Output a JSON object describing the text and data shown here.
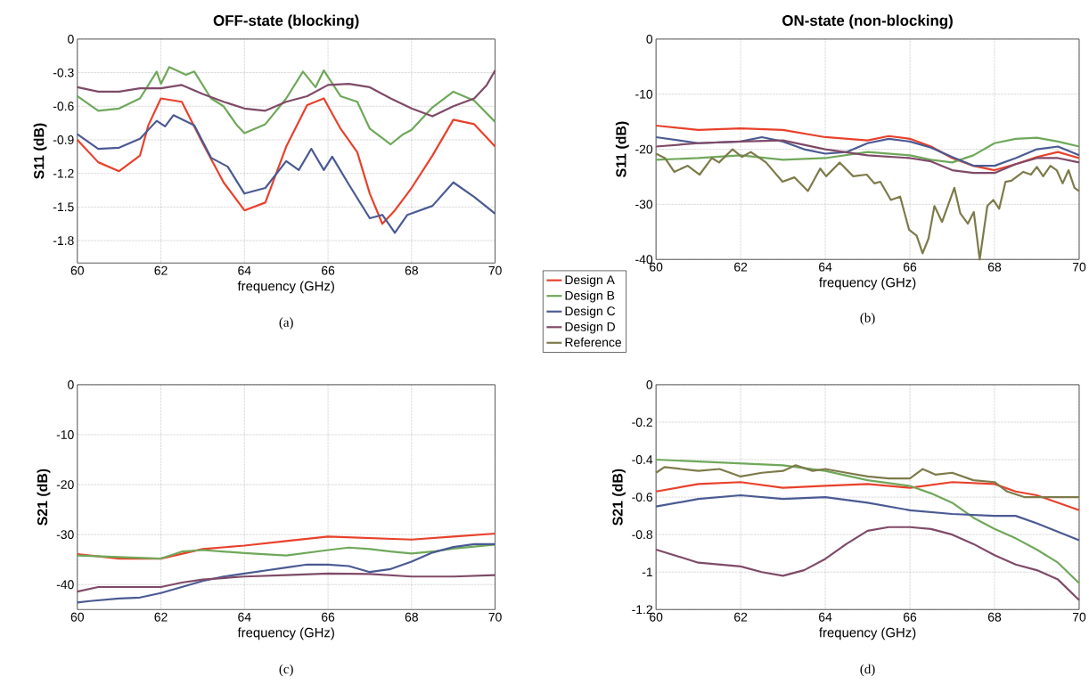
{
  "chart_data": [
    {
      "type": "line",
      "title": "OFF-state (blocking)",
      "xlabel": "frequency (GHz)",
      "ylabel": "S11 (dB)",
      "annotations": [
        "(a)"
      ],
      "xlim": [
        60,
        70
      ],
      "xticks": [
        60,
        62,
        64,
        66,
        68,
        70
      ],
      "ylim": [
        -2,
        0
      ],
      "yticks": [
        0,
        -0.3,
        -0.6,
        -0.9,
        -1.2,
        -1.5,
        -1.8
      ],
      "grid": true,
      "series": [
        {
          "color": "#e8412b",
          "x": [
            60,
            60.5,
            61,
            61.5,
            61.7,
            62,
            62.5,
            63,
            63.5,
            64,
            64.5,
            65,
            65.5,
            65.9,
            66.3,
            66.7,
            67,
            67.3,
            67.6,
            68,
            68.5,
            69,
            69.5,
            70
          ],
          "values": [
            -0.9,
            -1.1,
            -1.18,
            -1.04,
            -0.77,
            -0.53,
            -0.56,
            -0.93,
            -1.28,
            -1.53,
            -1.46,
            -0.96,
            -0.59,
            -0.53,
            -0.8,
            -1.01,
            -1.38,
            -1.65,
            -1.53,
            -1.33,
            -1.04,
            -0.72,
            -0.76,
            -0.96
          ]
        },
        {
          "color": "#6fa85a",
          "x": [
            60,
            60.5,
            61,
            61.5,
            61.9,
            62,
            62.2,
            62.6,
            62.8,
            63.2,
            63.5,
            63.8,
            64,
            64.5,
            65,
            65.4,
            65.7,
            65.9,
            66.3,
            66.7,
            67,
            67.5,
            67.8,
            68,
            68.5,
            69,
            69.5,
            70
          ],
          "values": [
            -0.51,
            -0.64,
            -0.62,
            -0.53,
            -0.29,
            -0.4,
            -0.25,
            -0.32,
            -0.29,
            -0.53,
            -0.6,
            -0.76,
            -0.84,
            -0.76,
            -0.53,
            -0.29,
            -0.43,
            -0.28,
            -0.51,
            -0.56,
            -0.8,
            -0.94,
            -0.85,
            -0.81,
            -0.61,
            -0.47,
            -0.55,
            -0.74
          ]
        },
        {
          "color": "#4a5a92",
          "x": [
            60,
            60.5,
            61,
            61.5,
            61.9,
            62.1,
            62.3,
            62.8,
            63.2,
            63.6,
            64,
            64.5,
            65,
            65.3,
            65.6,
            65.9,
            66.1,
            66.5,
            67,
            67.3,
            67.6,
            67.9,
            68.5,
            69,
            69.5,
            70
          ],
          "values": [
            -0.85,
            -0.98,
            -0.97,
            -0.89,
            -0.73,
            -0.78,
            -0.68,
            -0.77,
            -1.06,
            -1.14,
            -1.38,
            -1.33,
            -1.09,
            -1.17,
            -0.98,
            -1.17,
            -1.05,
            -1.3,
            -1.6,
            -1.57,
            -1.73,
            -1.57,
            -1.49,
            -1.28,
            -1.41,
            -1.56
          ]
        },
        {
          "color": "#7f4a68",
          "x": [
            60,
            60.5,
            61,
            61.5,
            62,
            62.5,
            63,
            63.5,
            64,
            64.5,
            65,
            65.5,
            66,
            66.5,
            67,
            67.5,
            68,
            68.5,
            69,
            69.5,
            69.8,
            70
          ],
          "values": [
            -0.43,
            -0.47,
            -0.47,
            -0.44,
            -0.44,
            -0.41,
            -0.49,
            -0.56,
            -0.62,
            -0.64,
            -0.56,
            -0.51,
            -0.41,
            -0.4,
            -0.43,
            -0.53,
            -0.62,
            -0.69,
            -0.6,
            -0.53,
            -0.41,
            -0.28
          ]
        }
      ]
    },
    {
      "type": "line",
      "title": "ON-state (non-blocking)",
      "xlabel": "frequency (GHz)",
      "ylabel": "S11 (dB)",
      "annotations": [
        "(b)"
      ],
      "xlim": [
        60,
        70
      ],
      "xticks": [
        60,
        62,
        64,
        66,
        68,
        70
      ],
      "ylim": [
        -40,
        0
      ],
      "yticks": [
        0,
        -10,
        -20,
        -30,
        -40
      ],
      "grid": true,
      "legend": "left",
      "series": [
        {
          "name": "Design A",
          "color": "#e8412b",
          "x": [
            60,
            61,
            62,
            63,
            64,
            65,
            65.5,
            66,
            66.5,
            67,
            67.5,
            68,
            68.5,
            69,
            69.5,
            70
          ],
          "values": [
            -15.7,
            -16.5,
            -16.2,
            -16.5,
            -17.8,
            -18.4,
            -17.6,
            -18.1,
            -19.5,
            -21.6,
            -23.0,
            -23.8,
            -22.7,
            -21.4,
            -20.5,
            -21.6
          ]
        },
        {
          "name": "Design B",
          "color": "#6fa85a",
          "x": [
            60,
            61,
            62,
            63,
            64,
            65,
            66,
            66.5,
            67,
            67.5,
            68,
            68.5,
            69,
            69.5,
            70
          ],
          "values": [
            -21.9,
            -21.6,
            -21.1,
            -21.9,
            -21.6,
            -20.5,
            -21.1,
            -21.9,
            -22.4,
            -21.1,
            -18.9,
            -18.1,
            -17.9,
            -18.6,
            -19.5
          ]
        },
        {
          "name": "Design C",
          "color": "#4a5a92",
          "x": [
            60,
            61,
            62,
            62.5,
            63,
            63.5,
            64,
            64.5,
            65,
            65.5,
            66,
            66.5,
            67,
            67.5,
            68,
            68.5,
            69,
            69.5,
            70
          ],
          "values": [
            -17.8,
            -18.9,
            -18.6,
            -17.8,
            -18.6,
            -20.0,
            -20.8,
            -20.5,
            -18.9,
            -18.1,
            -18.6,
            -19.7,
            -21.4,
            -23.0,
            -23.0,
            -21.6,
            -20.0,
            -19.5,
            -21.1
          ]
        },
        {
          "name": "Design D",
          "color": "#7f4a68",
          "x": [
            60,
            61,
            62,
            63,
            64,
            65,
            66,
            66.5,
            67,
            67.5,
            68,
            68.5,
            69,
            69.5,
            70
          ],
          "values": [
            -19.5,
            -18.9,
            -18.6,
            -18.4,
            -20.0,
            -21.1,
            -21.6,
            -22.2,
            -23.8,
            -24.3,
            -24.3,
            -22.7,
            -21.6,
            -21.6,
            -22.4
          ]
        },
        {
          "name": "Reference",
          "color": "#7d7a4a",
          "x": [
            60,
            60.21,
            60.43,
            60.75,
            61.03,
            61.32,
            61.49,
            61.81,
            62.03,
            62.24,
            62.6,
            62.99,
            63.27,
            63.59,
            63.88,
            64.02,
            64.34,
            64.66,
            64.98,
            65.16,
            65.3,
            65.55,
            65.77,
            65.98,
            66.16,
            66.3,
            66.44,
            66.58,
            66.76,
            67.05,
            67.19,
            67.37,
            67.51,
            67.65,
            67.83,
            67.97,
            68.11,
            68.26,
            68.4,
            68.68,
            68.86,
            69.0,
            69.15,
            69.32,
            69.47,
            69.61,
            69.75,
            69.89,
            70
          ],
          "values": [
            -20.8,
            -21.6,
            -24.1,
            -23.0,
            -24.6,
            -21.6,
            -22.4,
            -20.0,
            -21.4,
            -20.5,
            -22.4,
            -25.9,
            -25.1,
            -27.6,
            -23.5,
            -24.9,
            -22.4,
            -24.9,
            -24.6,
            -26.2,
            -25.9,
            -29.2,
            -28.6,
            -34.6,
            -35.7,
            -38.9,
            -36.2,
            -30.3,
            -33.2,
            -27.0,
            -31.6,
            -33.5,
            -31.4,
            -40.0,
            -30.3,
            -29.2,
            -30.8,
            -25.9,
            -25.7,
            -24.1,
            -24.6,
            -23.2,
            -24.9,
            -23.0,
            -23.8,
            -26.2,
            -23.8,
            -27.0,
            -27.6
          ]
        }
      ]
    },
    {
      "type": "line",
      "xlabel": "frequency (GHz)",
      "ylabel": "S21 (dB)",
      "annotations": [
        "(c)"
      ],
      "xlim": [
        60,
        70
      ],
      "xticks": [
        60,
        62,
        64,
        66,
        68,
        70
      ],
      "ylim": [
        -45,
        0
      ],
      "yticks": [
        0,
        -10,
        -20,
        -30,
        -40
      ],
      "grid": true,
      "series": [
        {
          "color": "#e8412b",
          "x": [
            60,
            61,
            62,
            63,
            64,
            65,
            66,
            67,
            68,
            69,
            70
          ],
          "values": [
            -33.9,
            -34.8,
            -34.8,
            -32.9,
            -32.2,
            -31.3,
            -30.4,
            -30.7,
            -31.0,
            -30.4,
            -29.8
          ]
        },
        {
          "color": "#6fa85a",
          "x": [
            60,
            61,
            62,
            62.5,
            63,
            64,
            65,
            66,
            66.5,
            67,
            67.5,
            68,
            68.5,
            69,
            70
          ],
          "values": [
            -34.2,
            -34.5,
            -34.8,
            -33.4,
            -33.1,
            -33.7,
            -34.2,
            -33.1,
            -32.6,
            -32.9,
            -33.4,
            -33.8,
            -33.4,
            -32.8,
            -32.0
          ]
        },
        {
          "color": "#4a5a92",
          "x": [
            60,
            60.3,
            61,
            61.5,
            62,
            62.5,
            63,
            63.5,
            64,
            64.5,
            65,
            65.5,
            66,
            66.5,
            67,
            67.5,
            68,
            68.5,
            69,
            69.5,
            70
          ],
          "values": [
            -43.6,
            -43.3,
            -42.8,
            -42.6,
            -41.7,
            -40.5,
            -39.3,
            -38.4,
            -37.8,
            -37.2,
            -36.6,
            -36.0,
            -36.0,
            -36.3,
            -37.5,
            -36.9,
            -35.4,
            -33.6,
            -32.5,
            -31.9,
            -31.9
          ]
        },
        {
          "color": "#7f4a68",
          "x": [
            60,
            60.5,
            61,
            62,
            62.5,
            63,
            64,
            65,
            66,
            67,
            68,
            69,
            70
          ],
          "values": [
            -41.4,
            -40.5,
            -40.5,
            -40.5,
            -39.6,
            -39.0,
            -38.4,
            -38.1,
            -37.8,
            -37.9,
            -38.4,
            -38.4,
            -38.1
          ]
        }
      ]
    },
    {
      "type": "line",
      "xlabel": "frequency (GHz)",
      "ylabel": "S21 (dB)",
      "annotations": [
        "(d)"
      ],
      "xlim": [
        60,
        70
      ],
      "xticks": [
        60,
        62,
        64,
        66,
        68,
        70
      ],
      "ylim": [
        -1.2,
        0
      ],
      "yticks": [
        0,
        -0.2,
        -0.4,
        -0.6,
        -0.8,
        -1,
        -1.2
      ],
      "grid": true,
      "series": [
        {
          "color": "#e8412b",
          "x": [
            60,
            61,
            62,
            63,
            64,
            65,
            66,
            67,
            68,
            68.5,
            69,
            70
          ],
          "values": [
            -0.57,
            -0.53,
            -0.52,
            -0.55,
            -0.54,
            -0.53,
            -0.55,
            -0.52,
            -0.53,
            -0.57,
            -0.59,
            -0.67
          ]
        },
        {
          "color": "#6fa85a",
          "x": [
            60,
            61,
            62,
            63,
            64,
            65,
            66,
            66.5,
            67,
            67.5,
            68,
            68.5,
            69,
            69.5,
            70
          ],
          "values": [
            -0.4,
            -0.41,
            -0.42,
            -0.43,
            -0.46,
            -0.51,
            -0.54,
            -0.58,
            -0.63,
            -0.71,
            -0.77,
            -0.82,
            -0.88,
            -0.95,
            -1.06
          ]
        },
        {
          "color": "#4a5a92",
          "x": [
            60,
            61,
            62,
            63,
            64,
            65,
            66,
            67,
            68,
            68.5,
            69,
            70
          ],
          "values": [
            -0.65,
            -0.61,
            -0.59,
            -0.61,
            -0.6,
            -0.63,
            -0.67,
            -0.69,
            -0.7,
            -0.7,
            -0.74,
            -0.83
          ]
        },
        {
          "color": "#7f4a68",
          "x": [
            60,
            61,
            62,
            62.5,
            63,
            63.5,
            64,
            64.5,
            65,
            65.5,
            66,
            66.5,
            67,
            67.5,
            68,
            68.5,
            69,
            69.5,
            70
          ],
          "values": [
            -0.88,
            -0.95,
            -0.97,
            -1.0,
            -1.02,
            -0.99,
            -0.93,
            -0.85,
            -0.78,
            -0.76,
            -0.76,
            -0.77,
            -0.8,
            -0.85,
            -0.91,
            -0.96,
            -0.99,
            -1.04,
            -1.15
          ]
        },
        {
          "color": "#7d7a4a",
          "x": [
            60,
            60.2,
            61,
            61.5,
            62,
            62.5,
            63,
            63.3,
            63.7,
            64,
            64.5,
            65,
            65.5,
            66,
            66.3,
            66.6,
            67,
            67.5,
            68,
            68.3,
            68.7,
            69,
            70
          ],
          "values": [
            -0.47,
            -0.44,
            -0.46,
            -0.45,
            -0.49,
            -0.47,
            -0.46,
            -0.43,
            -0.46,
            -0.45,
            -0.47,
            -0.49,
            -0.5,
            -0.5,
            -0.45,
            -0.48,
            -0.47,
            -0.51,
            -0.52,
            -0.57,
            -0.6,
            -0.6,
            -0.6
          ]
        }
      ]
    }
  ]
}
